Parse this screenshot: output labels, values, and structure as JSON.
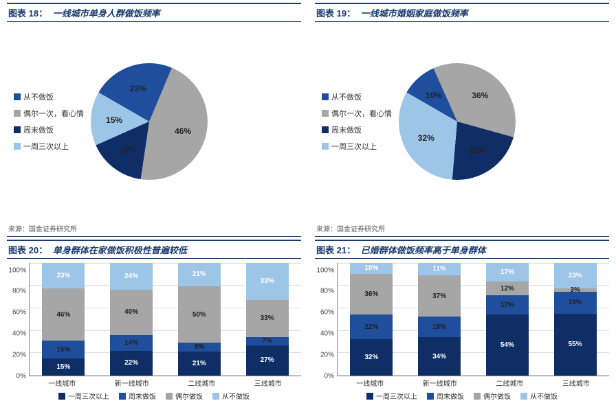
{
  "colors": {
    "dark_blue": "#1f4e9c",
    "gray": "#a6a6a6",
    "navy": "#0f2e66",
    "light_blue": "#9cc5e8",
    "border": "#1a3b6e"
  },
  "source_label": "来源：国金证券研究所",
  "pie_legend": [
    "从不做饭",
    "偶尔一次，看心情",
    "周末做饭",
    "一周三次以上"
  ],
  "bar_legend": [
    "一周三次以上",
    "周末做饭",
    "偶尔做饭",
    "从不做饭"
  ],
  "panels": {
    "p18": {
      "num": "图表 18：",
      "title": "一线城市单身人群做饭频率",
      "type": "pie",
      "slices": [
        {
          "label": "从不做饭",
          "value": 23,
          "color": "#1f4e9c"
        },
        {
          "label": "偶尔一次，看心情",
          "value": 46,
          "color": "#a6a6a6"
        },
        {
          "label": "周末做饭",
          "value": 16,
          "color": "#0f2e66"
        },
        {
          "label": "一周三次以上",
          "value": 15,
          "color": "#9cc5e8"
        }
      ]
    },
    "p19": {
      "num": "图表 19：",
      "title": "一线城市婚姻家庭做饭频率",
      "type": "pie",
      "slices": [
        {
          "label": "从不做饭",
          "value": 10,
          "color": "#1f4e9c"
        },
        {
          "label": "偶尔一次，看心情",
          "value": 36,
          "color": "#a6a6a6"
        },
        {
          "label": "周末做饭",
          "value": 22,
          "color": "#0f2e66"
        },
        {
          "label": "一周三次以上",
          "value": 32,
          "color": "#9cc5e8"
        }
      ]
    },
    "p20": {
      "num": "图表 20：",
      "title": "单身群体在家做饭积极性普遍较低",
      "type": "stacked-bar",
      "ylim": [
        0,
        100
      ],
      "ytick": 20,
      "categories": [
        "一线城市",
        "新一线城市",
        "二线城市",
        "三线城市"
      ],
      "series_colors": [
        "#0f2e66",
        "#1f4e9c",
        "#a6a6a6",
        "#9cc5e8"
      ],
      "stacks": [
        [
          15,
          16,
          46,
          23
        ],
        [
          22,
          14,
          40,
          24
        ],
        [
          21,
          8,
          50,
          21
        ],
        [
          27,
          7,
          33,
          33
        ]
      ]
    },
    "p21": {
      "num": "图表 21：",
      "title": "已婚群体做饭频率高于单身群体",
      "type": "stacked-bar",
      "ylim": [
        0,
        100
      ],
      "ytick": 20,
      "categories": [
        "一线城市",
        "新一线城市",
        "二线城市",
        "三线城市"
      ],
      "series_colors": [
        "#0f2e66",
        "#1f4e9c",
        "#a6a6a6",
        "#9cc5e8"
      ],
      "stacks": [
        [
          32,
          22,
          36,
          10
        ],
        [
          34,
          18,
          37,
          11
        ],
        [
          54,
          17,
          12,
          17
        ],
        [
          55,
          19,
          3,
          23
        ]
      ]
    }
  }
}
